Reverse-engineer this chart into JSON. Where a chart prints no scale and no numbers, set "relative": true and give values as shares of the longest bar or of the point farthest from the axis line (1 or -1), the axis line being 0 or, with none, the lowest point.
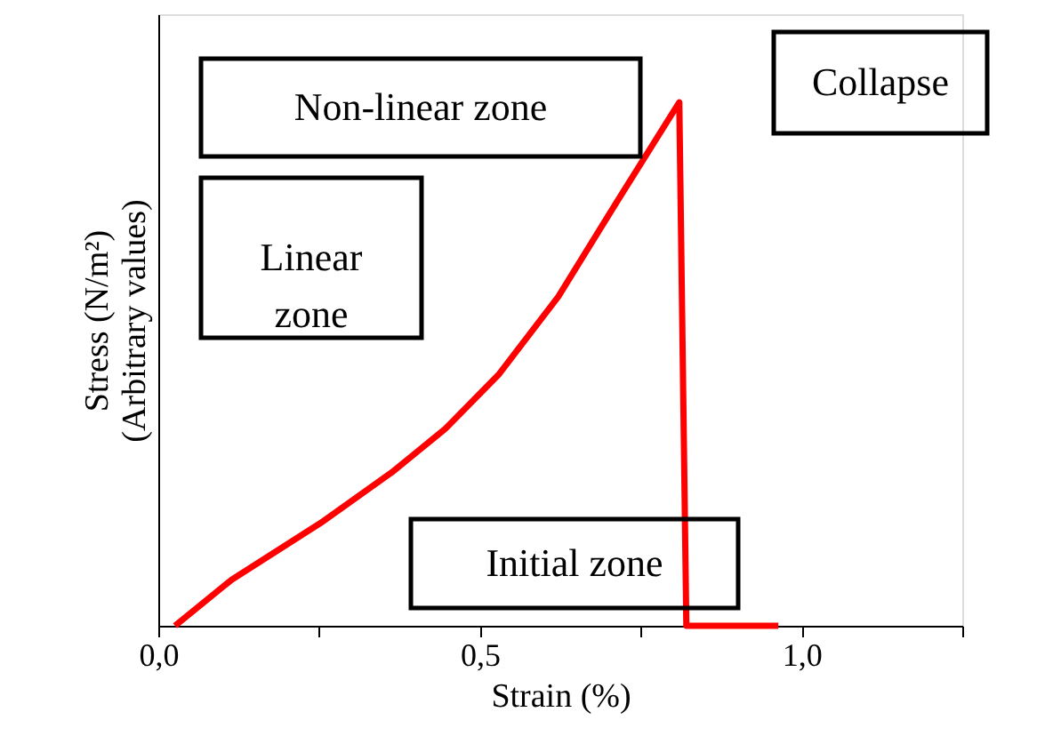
{
  "chart_data": {
    "type": "line",
    "relative": true,
    "xlabel": "Strain (%)",
    "ylabel": "Stress (N/m²)\n(Arbitrary values)",
    "x": [
      0.026,
      0.114,
      0.252,
      0.363,
      0.446,
      0.53,
      0.622,
      0.714,
      0.81,
      0.821,
      0.964
    ],
    "series": [
      {
        "color": "#ff0000",
        "values": [
          0,
          0.088,
          0.196,
          0.293,
          0.376,
          0.481,
          0.629,
          0.812,
          1,
          0,
          0
        ]
      }
    ],
    "xlim": [
      0,
      1.25
    ],
    "xticks": [
      {
        "value": 0,
        "label": "0,0"
      },
      {
        "value": 0.25,
        "label": null
      },
      {
        "value": 0.5,
        "label": "0,5"
      },
      {
        "value": 0.75,
        "label": null
      },
      {
        "value": 1.0,
        "label": "1,0"
      },
      {
        "value": 1.25,
        "label": null
      }
    ],
    "tick_labels": "x",
    "grid": false,
    "marker": "none",
    "line_style": "solid",
    "annotations": [
      "Collapse",
      "Non-linear zone",
      "Linear zone",
      "Initial zone"
    ]
  }
}
